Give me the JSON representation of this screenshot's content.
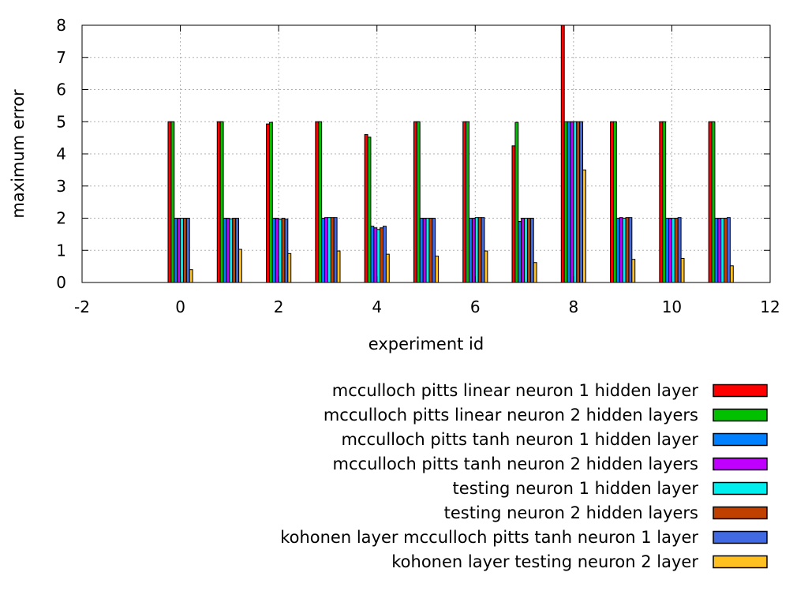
{
  "chart_data": {
    "type": "bar",
    "xlabel": "experiment id",
    "ylabel": "maximum error",
    "xlim": [
      -2,
      12
    ],
    "ylim": [
      0,
      8
    ],
    "xticks": [
      -2,
      0,
      2,
      4,
      6,
      8,
      10,
      12
    ],
    "yticks": [
      0,
      1,
      2,
      3,
      4,
      5,
      6,
      7,
      8
    ],
    "grid": true,
    "legend_position": "bottom-right",
    "categories": [
      0,
      1,
      2,
      3,
      4,
      5,
      6,
      7,
      8,
      9,
      10,
      11
    ],
    "series": [
      {
        "name": "mcculloch pitts linear neuron 1 hidden layer",
        "color": "#ff0000",
        "values": [
          5.0,
          5.0,
          4.93,
          5.0,
          4.6,
          5.0,
          5.0,
          4.25,
          8.0,
          5.0,
          5.0,
          5.0
        ]
      },
      {
        "name": "mcculloch pitts linear neuron 2 hidden layers",
        "color": "#00c000",
        "values": [
          5.0,
          5.0,
          4.98,
          5.0,
          4.52,
          5.0,
          5.0,
          4.98,
          5.0,
          5.0,
          5.0,
          5.0
        ]
      },
      {
        "name": "mcculloch pitts tanh neuron 1 hidden layer",
        "color": "#0080ff",
        "values": [
          2.0,
          2.0,
          2.0,
          2.0,
          1.75,
          2.0,
          2.0,
          1.9,
          5.0,
          2.0,
          2.0,
          2.0
        ]
      },
      {
        "name": "mcculloch pitts tanh neuron 2 hidden layers",
        "color": "#c000ff",
        "values": [
          2.0,
          2.0,
          2.0,
          2.02,
          1.7,
          2.0,
          2.0,
          2.0,
          5.0,
          2.02,
          2.0,
          2.0
        ]
      },
      {
        "name": "testing neuron 1 hidden layer",
        "color": "#00eeee",
        "values": [
          2.0,
          1.98,
          1.96,
          2.02,
          1.65,
          2.0,
          2.02,
          2.0,
          5.0,
          2.0,
          2.0,
          2.0
        ]
      },
      {
        "name": "testing neuron 2 hidden layers",
        "color": "#c04000",
        "values": [
          2.0,
          2.0,
          2.0,
          2.02,
          1.7,
          2.0,
          2.02,
          2.0,
          5.0,
          2.02,
          2.0,
          2.0
        ]
      },
      {
        "name": "kohonen layer mcculloch pitts tanh neuron 1 layer",
        "color": "#4169e1",
        "values": [
          2.0,
          2.0,
          1.97,
          2.02,
          1.75,
          2.0,
          2.02,
          2.0,
          5.0,
          2.02,
          2.02,
          2.02
        ]
      },
      {
        "name": "kohonen layer testing neuron 2 layer",
        "color": "#ffc020",
        "values": [
          0.4,
          1.03,
          0.9,
          0.98,
          0.88,
          0.82,
          0.98,
          0.62,
          3.5,
          0.72,
          0.75,
          0.52
        ]
      }
    ]
  }
}
